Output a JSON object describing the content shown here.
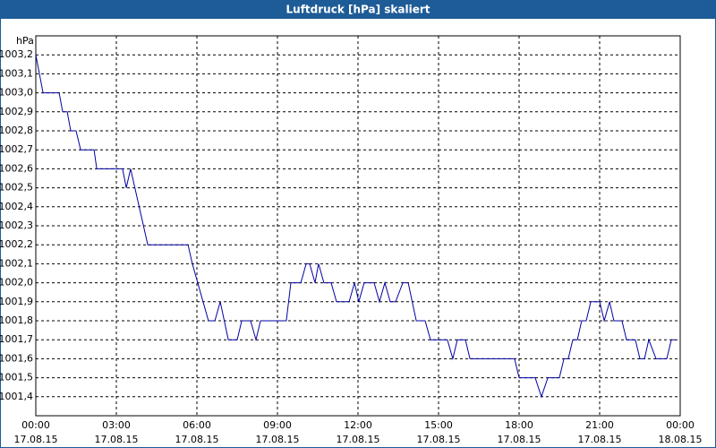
{
  "chart_data": {
    "type": "line",
    "title": "Luftdruck [hPa] skaliert",
    "y_label": "hPa",
    "color": "#0000a0",
    "grid": true,
    "xlim": [
      0,
      24
    ],
    "ylim": [
      1001.3,
      1003.3
    ],
    "xticks": [
      {
        "value": 0,
        "label": "00:00"
      },
      {
        "value": 3,
        "label": "03:00"
      },
      {
        "value": 6,
        "label": "06:00"
      },
      {
        "value": 9,
        "label": "09:00"
      },
      {
        "value": 12,
        "label": "12:00"
      },
      {
        "value": 15,
        "label": "15:00"
      },
      {
        "value": 18,
        "label": "18:00"
      },
      {
        "value": 21,
        "label": "21:00"
      },
      {
        "value": 24,
        "label": "00:00"
      }
    ],
    "xtick_dates": [
      "17.08.15",
      "17.08.15",
      "17.08.15",
      "17.08.15",
      "17.08.15",
      "17.08.15",
      "17.08.15",
      "17.08.15",
      "18.08.15"
    ],
    "yticks": [
      {
        "value": 1001.4,
        "label": "1001,4"
      },
      {
        "value": 1001.5,
        "label": "1001,5"
      },
      {
        "value": 1001.6,
        "label": "1001,6"
      },
      {
        "value": 1001.7,
        "label": "1001,7"
      },
      {
        "value": 1001.8,
        "label": "1001,8"
      },
      {
        "value": 1001.9,
        "label": "1001,9"
      },
      {
        "value": 1002.0,
        "label": "1002,0"
      },
      {
        "value": 1002.1,
        "label": "1002,1"
      },
      {
        "value": 1002.2,
        "label": "1002,2"
      },
      {
        "value": 1002.3,
        "label": "1002,3"
      },
      {
        "value": 1002.4,
        "label": "1002,4"
      },
      {
        "value": 1002.5,
        "label": "1002,5"
      },
      {
        "value": 1002.6,
        "label": "1002,6"
      },
      {
        "value": 1002.7,
        "label": "1002,7"
      },
      {
        "value": 1002.8,
        "label": "1002,8"
      },
      {
        "value": 1002.9,
        "label": "1002,9"
      },
      {
        "value": 1003.0,
        "label": "1003,0"
      },
      {
        "value": 1003.1,
        "label": "1003,1"
      },
      {
        "value": 1003.2,
        "label": "1003,2"
      }
    ],
    "x": [
      0,
      0.27,
      0.87,
      1.0,
      1.17,
      1.3,
      1.5,
      1.67,
      2.17,
      2.27,
      3.23,
      3.37,
      3.53,
      4.17,
      5.67,
      5.83,
      6.43,
      6.67,
      6.87,
      7.17,
      7.5,
      7.67,
      8.0,
      8.2,
      8.37,
      9.33,
      9.5,
      9.87,
      10.07,
      10.2,
      10.4,
      10.53,
      10.73,
      11.0,
      11.2,
      11.67,
      11.87,
      12.03,
      12.23,
      12.6,
      12.8,
      13.0,
      13.2,
      13.4,
      13.67,
      13.87,
      14.17,
      14.5,
      14.7,
      15.33,
      15.53,
      15.7,
      16.0,
      16.17,
      17.83,
      18.0,
      18.6,
      18.83,
      19.07,
      19.5,
      19.67,
      19.83,
      20.0,
      20.17,
      20.33,
      20.5,
      20.67,
      21.0,
      21.17,
      21.37,
      21.53,
      21.83,
      22.0,
      22.33,
      22.5,
      22.67,
      22.83,
      23.1,
      23.5,
      23.67,
      23.83
    ],
    "values": [
      1003.2,
      1003.0,
      1003.0,
      1002.9,
      1002.9,
      1002.8,
      1002.8,
      1002.7,
      1002.7,
      1002.6,
      1002.6,
      1002.5,
      1002.6,
      1002.2,
      1002.2,
      1002.1,
      1001.8,
      1001.8,
      1001.9,
      1001.7,
      1001.7,
      1001.8,
      1001.8,
      1001.7,
      1001.8,
      1001.8,
      1002.0,
      1002.0,
      1002.1,
      1002.1,
      1002.0,
      1002.1,
      1002.0,
      1002.0,
      1001.9,
      1001.9,
      1002.0,
      1001.9,
      1002.0,
      1002.0,
      1001.9,
      1002.0,
      1001.9,
      1001.9,
      1002.0,
      1002.0,
      1001.8,
      1001.8,
      1001.7,
      1001.7,
      1001.6,
      1001.7,
      1001.7,
      1001.6,
      1001.6,
      1001.5,
      1001.5,
      1001.4,
      1001.5,
      1001.5,
      1001.6,
      1001.6,
      1001.7,
      1001.7,
      1001.8,
      1001.8,
      1001.9,
      1001.9,
      1001.8,
      1001.9,
      1001.8,
      1001.8,
      1001.7,
      1001.7,
      1001.6,
      1001.6,
      1001.7,
      1001.6,
      1001.6,
      1001.7,
      1001.7
    ]
  }
}
